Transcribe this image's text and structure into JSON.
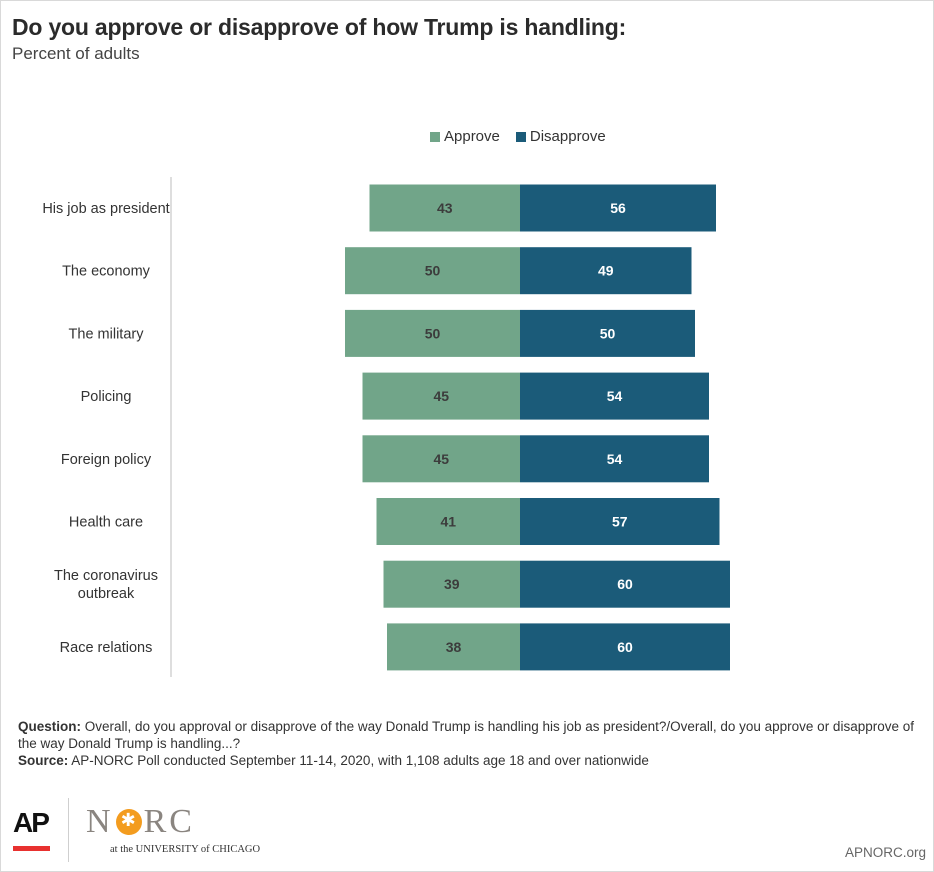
{
  "title": "Do you approve or disapprove of how Trump is handling:",
  "subtitle": "Percent of adults",
  "colors": {
    "approve": "#71a589",
    "disapprove": "#1b5b79",
    "approve_label": "#3c3c3c",
    "disapprove_label": "#ffffff"
  },
  "legend": {
    "approve": "Approve",
    "disapprove": "Disapprove"
  },
  "chart_data": {
    "type": "bar",
    "orientation": "horizontal-diverging",
    "categories": [
      "His job as president",
      "The economy",
      "The military",
      "Policing",
      "Foreign policy",
      "Health care",
      "The coronavirus outbreak",
      "Race relations"
    ],
    "series": [
      {
        "name": "Approve",
        "values": [
          43,
          50,
          50,
          45,
          45,
          41,
          39,
          38
        ]
      },
      {
        "name": "Disapprove",
        "values": [
          56,
          49,
          50,
          54,
          54,
          57,
          60,
          60
        ]
      }
    ],
    "legend_position": "top",
    "grid": false
  },
  "notes": {
    "question_label": "Question:",
    "question_text": "Overall, do you approval or disapprove of the way Donald Trump is handling his job as president?/Overall, do you approve or disapprove of the way Donald Trump is handling...?",
    "source_label": "Source:",
    "source_text": "AP-NORC Poll conducted September 11-14, 2020, with 1,108 adults age 18 and over nationwide"
  },
  "logos": {
    "ap": "AP",
    "norc_left": "N",
    "norc_right": "RC",
    "norc_sub": "at the UNIVERSITY of CHICAGO"
  },
  "site": "APNORC.org"
}
